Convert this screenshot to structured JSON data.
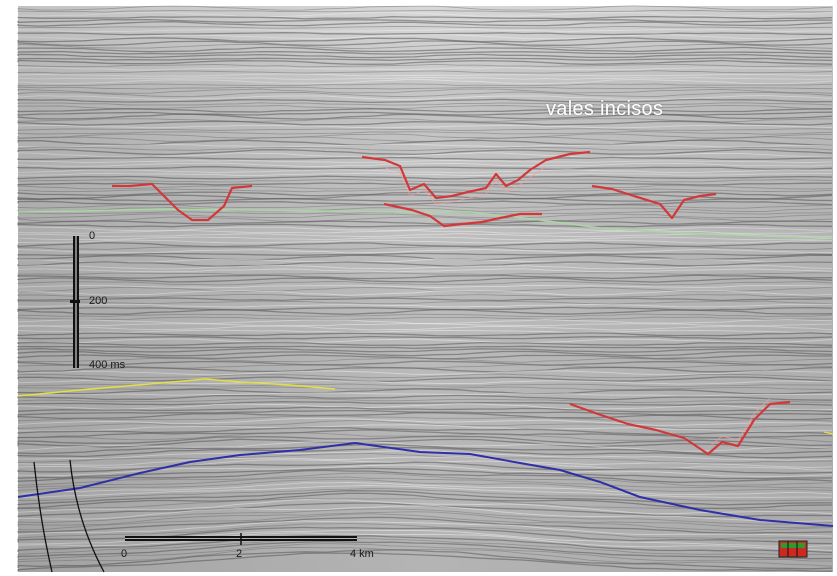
{
  "annotation": "vales incisos",
  "time_scale": {
    "labels": [
      "0",
      "200",
      "400 ms"
    ]
  },
  "distance_scale": {
    "labels": [
      "0",
      "2",
      "4 km"
    ]
  },
  "horizon_colors": {
    "incised_valleys": "#d2383a",
    "upper_horizon": "#a8d9a0",
    "middle_horizon": "#e3e040",
    "lower_horizon": "#2f2fa8",
    "faults": "#111111"
  },
  "icons": {
    "corner_legend": "color-swatch-icon"
  }
}
